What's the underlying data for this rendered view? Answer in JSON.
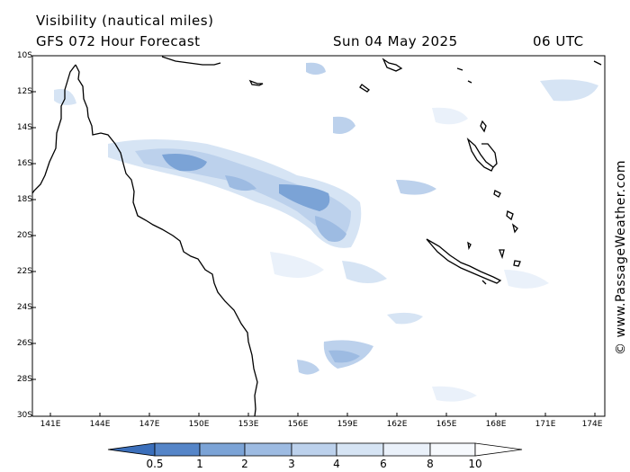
{
  "header": {
    "title": "Visibility (nautical miles)",
    "model": "GFS 072 Hour Forecast",
    "date": "Sun 04 May 2025",
    "time": "06 UTC"
  },
  "credit": "© www.PassageWeather.com",
  "axes": {
    "lat_labels": [
      "10S",
      "12S",
      "14S",
      "16S",
      "18S",
      "20S",
      "22S",
      "24S",
      "26S",
      "28S",
      "30S"
    ],
    "lon_labels": [
      "141E",
      "144E",
      "147E",
      "150E",
      "153E",
      "156E",
      "159E",
      "162E",
      "165E",
      "168E",
      "171E",
      "174E"
    ]
  },
  "legend": {
    "labels": [
      "0.5",
      "1",
      "2",
      "3",
      "4",
      "6",
      "8",
      "10"
    ],
    "colors": [
      "#3b6fbb",
      "#5585c8",
      "#7ba3d6",
      "#9dbbe2",
      "#bcd1ec",
      "#d6e4f4",
      "#eaf1fa",
      "#ffffff"
    ]
  },
  "colors": {
    "coastline": "#000000",
    "frame": "#000000",
    "background": "#ffffff"
  }
}
